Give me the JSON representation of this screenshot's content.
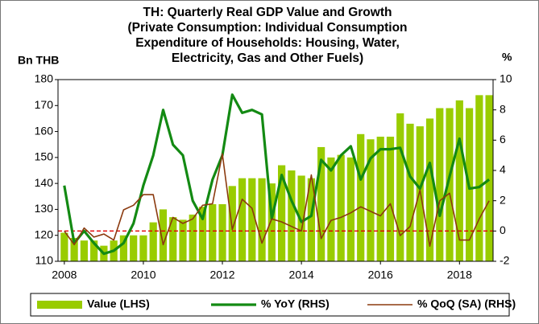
{
  "chart_data": {
    "type": "bar_line",
    "title_lines": [
      "TH: Quarterly Real GDP Value and Growth",
      "(Private Consumption: Individual Consumption",
      "Expenditure of Households: Housing, Water,",
      "Electricity, Gas and Other Fuels)"
    ],
    "y_label": "Bn THB",
    "y2_label": "%",
    "x": [
      2008,
      2008.25,
      2008.5,
      2008.75,
      2009,
      2009.25,
      2009.5,
      2009.75,
      2010,
      2010.25,
      2010.5,
      2010.75,
      2011,
      2011.25,
      2011.5,
      2011.75,
      2012,
      2012.25,
      2012.5,
      2012.75,
      2013,
      2013.25,
      2013.5,
      2013.75,
      2014,
      2014.25,
      2014.5,
      2014.75,
      2015,
      2015.25,
      2015.5,
      2015.75,
      2016,
      2016.25,
      2016.5,
      2016.75,
      2017,
      2017.25,
      2017.5,
      2017.75,
      2018,
      2018.25,
      2018.5,
      2018.75
    ],
    "series": [
      {
        "name": "Value (LHS)",
        "color": "#99cc00",
        "kind": "bar",
        "axis": "y",
        "values": [
          121,
          119,
          118,
          118,
          116,
          118,
          120,
          120,
          120,
          125,
          130,
          127,
          126,
          128,
          131,
          132,
          132,
          139,
          142,
          142,
          142,
          140,
          147,
          145,
          143,
          142,
          154,
          150,
          151,
          150,
          159,
          157,
          158,
          158,
          167,
          163,
          162,
          165,
          169,
          169,
          172,
          169,
          174,
          174
        ]
      },
      {
        "name": "% YoY (RHS)",
        "color": "#138a13",
        "kind": "line",
        "axis": "y2",
        "values": [
          3.0,
          -0.8,
          0.0,
          -0.8,
          -1.5,
          -1.3,
          -0.8,
          0.5,
          3.0,
          5.0,
          8.0,
          5.7,
          5.0,
          2.0,
          0.8,
          3.4,
          5.0,
          9.0,
          7.8,
          8.0,
          7.7,
          0.8,
          3.7,
          2.0,
          0.6,
          1.0,
          4.7,
          4.0,
          5.0,
          5.6,
          3.4,
          4.8,
          5.4,
          5.4,
          5.5,
          3.6,
          2.8,
          4.5,
          1.0,
          3.6,
          6.1,
          2.8,
          2.9,
          3.4
        ]
      },
      {
        "name": "% QoQ (SA) (RHS)",
        "color": "#8b3a0f",
        "kind": "thinline",
        "axis": "y2",
        "values": [
          0.0,
          -0.9,
          0.2,
          -0.4,
          -0.2,
          -0.6,
          1.4,
          1.7,
          2.4,
          2.4,
          -0.9,
          0.9,
          0.5,
          0.8,
          1.7,
          1.8,
          5.1,
          0.1,
          2.1,
          1.5,
          -0.8,
          0.8,
          0.6,
          0.3,
          0.0,
          3.7,
          -0.5,
          0.7,
          0.9,
          1.2,
          1.6,
          1.3,
          1.0,
          1.8,
          -0.3,
          0.3,
          2.7,
          -1.0,
          2.0,
          2.5,
          -0.6,
          -0.6,
          0.8,
          2.0
        ]
      }
    ],
    "y2_reference": 0,
    "reference_color": "#e00000",
    "xlim": [
      2007.84,
      2018.85
    ],
    "xticks": [
      2008,
      2010,
      2012,
      2014,
      2016,
      2018
    ],
    "ylim": [
      110,
      180
    ],
    "yticks": [
      110,
      120,
      130,
      140,
      150,
      160,
      170,
      180
    ],
    "y2lim": [
      -2,
      10
    ],
    "y2ticks": [
      -2,
      0,
      2,
      4,
      6,
      8,
      10
    ],
    "legend": "bottom",
    "grid": false
  }
}
